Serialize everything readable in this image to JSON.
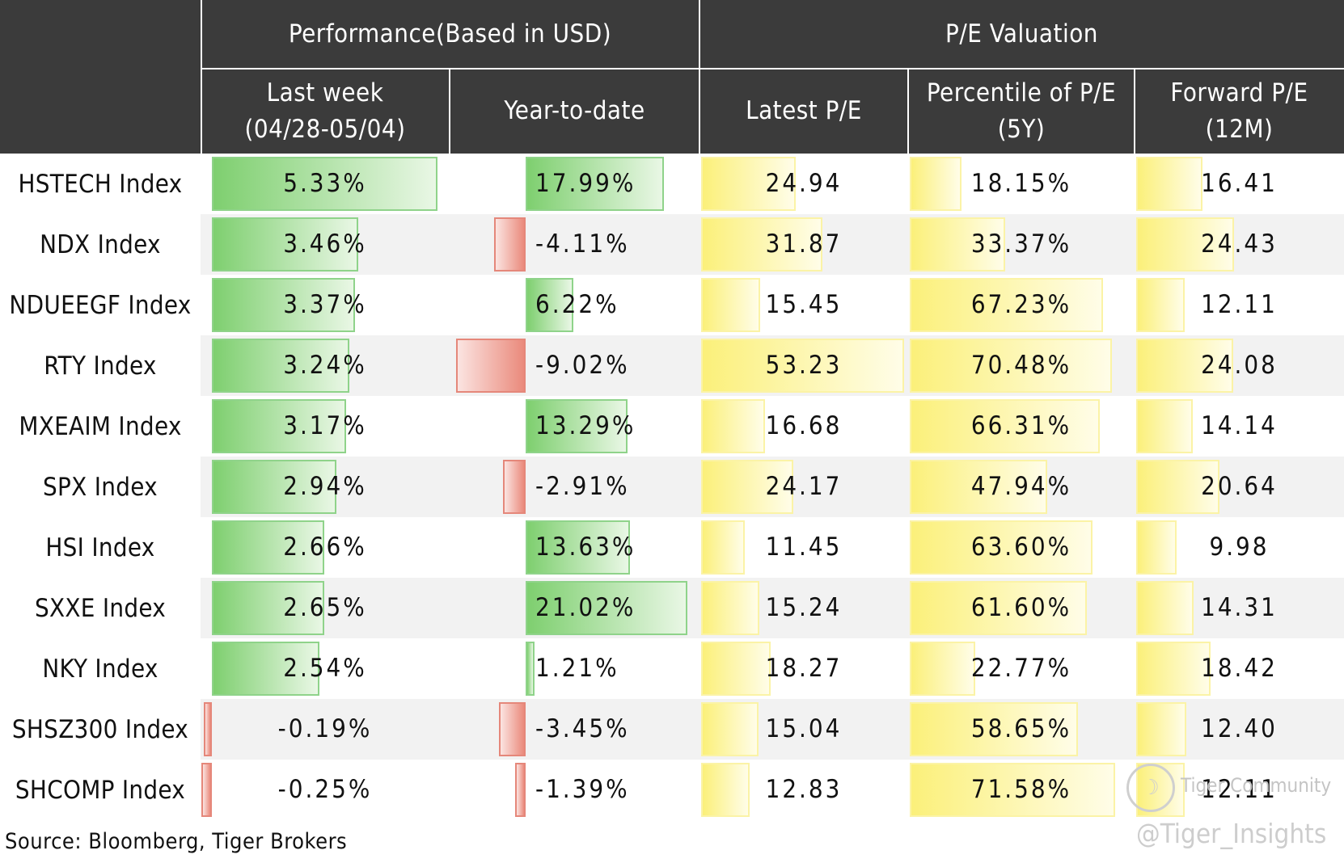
{
  "header": {
    "group_performance": "Performance(Based in USD)",
    "group_pe": "P/E Valuation",
    "col_last_week_line1": "Last week",
    "col_last_week_line2": "(04/28-05/04)",
    "col_ytd": "Year-to-date",
    "col_latest_pe": "Latest P/E",
    "col_percentile_line1": "Percentile of P/E",
    "col_percentile_line2": "(5Y)",
    "col_forward_line1": "Forward P/E",
    "col_forward_line2": "(12M)"
  },
  "colors": {
    "header_bg": "#3b3b3b",
    "positive": "#7ecf6f",
    "negative": "#ea8a7c",
    "valuation": "#fbf07a"
  },
  "rows": [
    {
      "name": "HSTECH Index",
      "last_week": "5.33%",
      "last_week_value": 5.33,
      "ytd": "17.99%",
      "ytd_value": 17.99,
      "latest_pe": "24.94",
      "latest_pe_value": 24.94,
      "percentile": "18.15%",
      "percentile_value": 18.15,
      "forward_pe": "16.41",
      "forward_pe_value": 16.41
    },
    {
      "name": "NDX Index",
      "last_week": "3.46%",
      "last_week_value": 3.46,
      "ytd": "-4.11%",
      "ytd_value": -4.11,
      "latest_pe": "31.87",
      "latest_pe_value": 31.87,
      "percentile": "33.37%",
      "percentile_value": 33.37,
      "forward_pe": "24.43",
      "forward_pe_value": 24.43
    },
    {
      "name": "NDUEEGF Index",
      "last_week": "3.37%",
      "last_week_value": 3.37,
      "ytd": "6.22%",
      "ytd_value": 6.22,
      "latest_pe": "15.45",
      "latest_pe_value": 15.45,
      "percentile": "67.23%",
      "percentile_value": 67.23,
      "forward_pe": "12.11",
      "forward_pe_value": 12.11
    },
    {
      "name": "RTY Index",
      "last_week": "3.24%",
      "last_week_value": 3.24,
      "ytd": "-9.02%",
      "ytd_value": -9.02,
      "latest_pe": "53.23",
      "latest_pe_value": 53.23,
      "percentile": "70.48%",
      "percentile_value": 70.48,
      "forward_pe": "24.08",
      "forward_pe_value": 24.08
    },
    {
      "name": "MXEAIM Index",
      "last_week": "3.17%",
      "last_week_value": 3.17,
      "ytd": "13.29%",
      "ytd_value": 13.29,
      "latest_pe": "16.68",
      "latest_pe_value": 16.68,
      "percentile": "66.31%",
      "percentile_value": 66.31,
      "forward_pe": "14.14",
      "forward_pe_value": 14.14
    },
    {
      "name": "SPX Index",
      "last_week": "2.94%",
      "last_week_value": 2.94,
      "ytd": "-2.91%",
      "ytd_value": -2.91,
      "latest_pe": "24.17",
      "latest_pe_value": 24.17,
      "percentile": "47.94%",
      "percentile_value": 47.94,
      "forward_pe": "20.64",
      "forward_pe_value": 20.64
    },
    {
      "name": "HSI Index",
      "last_week": "2.66%",
      "last_week_value": 2.66,
      "ytd": "13.63%",
      "ytd_value": 13.63,
      "latest_pe": "11.45",
      "latest_pe_value": 11.45,
      "percentile": "63.60%",
      "percentile_value": 63.6,
      "forward_pe": "9.98",
      "forward_pe_value": 9.98
    },
    {
      "name": "SXXE Index",
      "last_week": "2.65%",
      "last_week_value": 2.65,
      "ytd": "21.02%",
      "ytd_value": 21.02,
      "latest_pe": "15.24",
      "latest_pe_value": 15.24,
      "percentile": "61.60%",
      "percentile_value": 61.6,
      "forward_pe": "14.31",
      "forward_pe_value": 14.31
    },
    {
      "name": "NKY Index",
      "last_week": "2.54%",
      "last_week_value": 2.54,
      "ytd": "1.21%",
      "ytd_value": 1.21,
      "latest_pe": "18.27",
      "latest_pe_value": 18.27,
      "percentile": "22.77%",
      "percentile_value": 22.77,
      "forward_pe": "18.42",
      "forward_pe_value": 18.42
    },
    {
      "name": "SHSZ300 Index",
      "last_week": "-0.19%",
      "last_week_value": -0.19,
      "ytd": "-3.45%",
      "ytd_value": -3.45,
      "latest_pe": "15.04",
      "latest_pe_value": 15.04,
      "percentile": "58.65%",
      "percentile_value": 58.65,
      "forward_pe": "12.40",
      "forward_pe_value": 12.4
    },
    {
      "name": "SHCOMP Index",
      "last_week": "-0.25%",
      "last_week_value": -0.25,
      "ytd": "-1.39%",
      "ytd_value": -1.39,
      "latest_pe": "12.83",
      "latest_pe_value": 12.83,
      "percentile": "71.58%",
      "percentile_value": 71.58,
      "forward_pe": "12.11",
      "forward_pe_value": 12.11
    }
  ],
  "source": "Source: Bloomberg, Tiger Brokers",
  "watermark": {
    "community": "Tiger Community",
    "handle": "@Tiger_Insights"
  }
}
